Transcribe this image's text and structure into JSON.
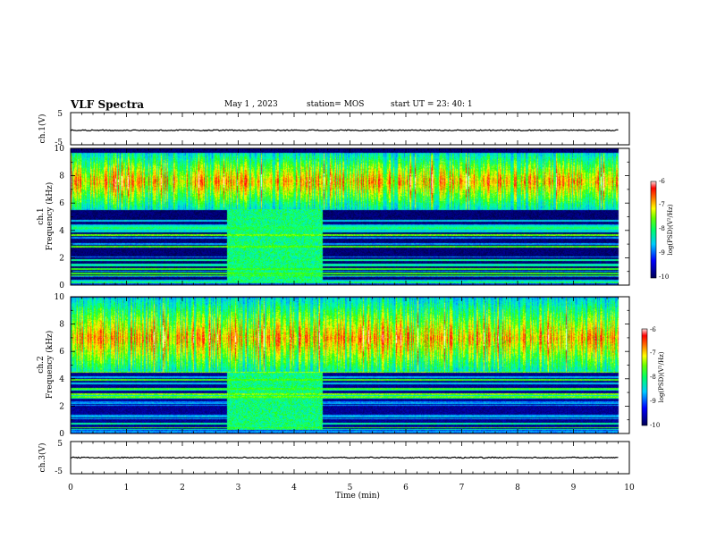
{
  "header": {
    "title": "VLF Spectra",
    "date": "May 1  , 2023",
    "station": "station= MOS",
    "start": "start  UT  =   23: 40: 1"
  },
  "chart_data": [
    {
      "type": "line",
      "name": "ch1-voltage",
      "ylabel": "ch.1(V)",
      "xlim": [
        0,
        10
      ],
      "ylim": [
        -5,
        5
      ],
      "yticks": [
        "5",
        "-5"
      ],
      "level": -0.5
    },
    {
      "type": "heatmap",
      "name": "ch1-spectrogram",
      "ylabel": [
        "ch.1",
        "Frequency (kHz)"
      ],
      "xlim": [
        0,
        9.8
      ],
      "ylim": [
        0,
        10
      ],
      "yticks": [
        "0",
        "2",
        "4",
        "6",
        "8",
        "10"
      ],
      "high_band_khz": [
        5.5,
        9.7
      ],
      "interference_block": {
        "t_min": [
          2.8,
          4.5
        ],
        "f_khz": [
          0.3,
          5.6
        ]
      },
      "colorbar": {
        "label": "log(PSD)(V²/Hz)",
        "range": [
          -10,
          -6
        ],
        "ticks": [
          "-6",
          "-7",
          "-8",
          "-9",
          "-10"
        ]
      }
    },
    {
      "type": "heatmap",
      "name": "ch2-spectrogram",
      "ylabel": [
        "ch.2",
        "Frequency (kHz)"
      ],
      "xlim": [
        0,
        9.8
      ],
      "ylim": [
        0,
        10
      ],
      "yticks": [
        "0",
        "2",
        "4",
        "6",
        "8",
        "10"
      ],
      "high_band_khz": [
        4.5,
        10
      ],
      "interference_block": {
        "t_min": [
          2.8,
          4.5
        ],
        "f_khz": [
          0.3,
          4.5
        ]
      },
      "colorbar": {
        "label": "log(PSD)(V²/Hz)",
        "range": [
          -10,
          -6
        ],
        "ticks": [
          "-6",
          "-7",
          "-8",
          "-9",
          "-10"
        ]
      }
    },
    {
      "type": "line",
      "name": "ch3-voltage",
      "ylabel": "ch.3(V)",
      "xlim": [
        0,
        10
      ],
      "ylim": [
        -5,
        5
      ],
      "yticks": [
        "5",
        "-5"
      ],
      "level": 0
    }
  ],
  "xaxis": {
    "label": "Time  (min)",
    "ticks": [
      "0",
      "1",
      "2",
      "3",
      "4",
      "5",
      "6",
      "7",
      "8",
      "9",
      "10"
    ]
  },
  "colormap": [
    "#000033",
    "#0000aa",
    "#0044ff",
    "#00bbff",
    "#00ffaa",
    "#33ff00",
    "#ffff00",
    "#ff8800",
    "#ff0000",
    "#ffffff"
  ]
}
